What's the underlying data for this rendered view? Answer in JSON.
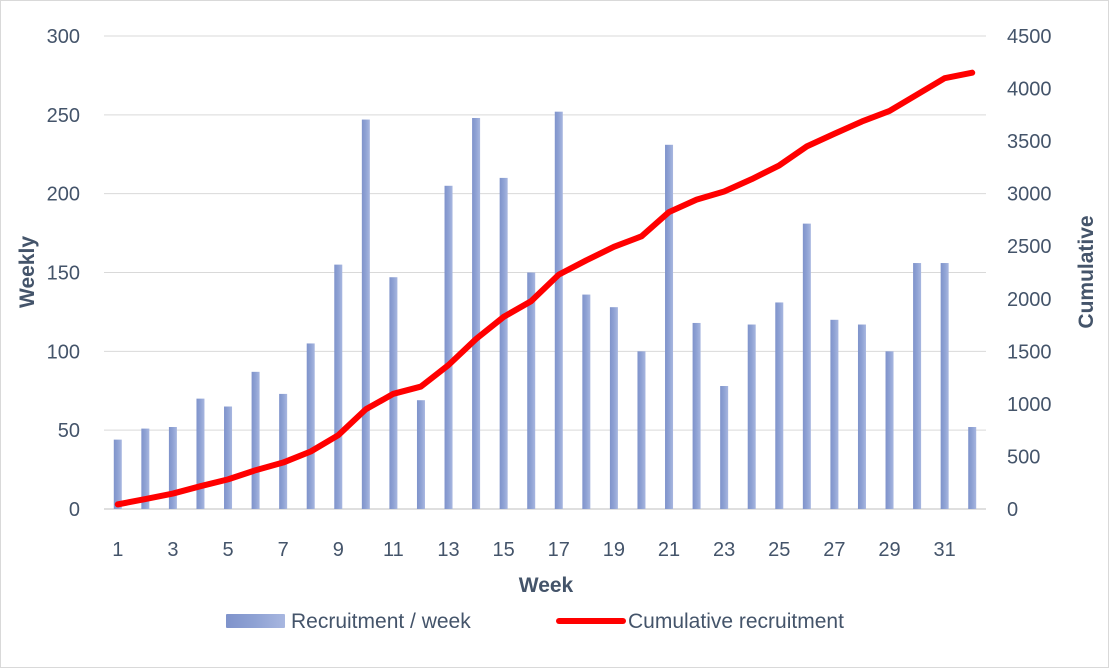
{
  "chart_data": {
    "type": "bar",
    "xlabel": "Week",
    "ylabel_left": "Weekly",
    "ylabel_right": "Cumulative",
    "ylim_left": [
      0,
      300
    ],
    "ylim_right": [
      0,
      4500
    ],
    "yticks_left": [
      "0",
      "50",
      "100",
      "150",
      "200",
      "250",
      "300"
    ],
    "yticks_right": [
      "0",
      "500",
      "1000",
      "1500",
      "2000",
      "2500",
      "3000",
      "3500",
      "4000",
      "4500"
    ],
    "xtick_labels": [
      "1",
      "3",
      "5",
      "7",
      "9",
      "11",
      "13",
      "15",
      "17",
      "19",
      "21",
      "23",
      "25",
      "27",
      "29",
      "31"
    ],
    "grid": true,
    "legend_position": "bottom",
    "categories": [
      1,
      2,
      3,
      4,
      5,
      6,
      7,
      8,
      9,
      10,
      11,
      12,
      13,
      14,
      15,
      16,
      17,
      18,
      19,
      20,
      21,
      22,
      23,
      24,
      25,
      26,
      27,
      28,
      29,
      30,
      31,
      32
    ],
    "series": [
      {
        "name": "Recruitment / week",
        "type": "bar",
        "axis": "left",
        "color": "#8fa2d4",
        "values": [
          44,
          51,
          52,
          70,
          65,
          87,
          73,
          105,
          155,
          247,
          147,
          69,
          205,
          248,
          210,
          150,
          252,
          136,
          128,
          100,
          231,
          118,
          78,
          117,
          131,
          181,
          120,
          117,
          100,
          156,
          156,
          52
        ]
      },
      {
        "name": "Cumulative recruitment",
        "type": "line",
        "axis": "right",
        "color": "#ff0000",
        "values": [
          44,
          95,
          147,
          217,
          282,
          369,
          442,
          547,
          702,
          949,
          1096,
          1165,
          1370,
          1618,
          1828,
          1978,
          2230,
          2366,
          2494,
          2594,
          2825,
          2943,
          3021,
          3138,
          3269,
          3450,
          3570,
          3687,
          3787,
          3943,
          4099,
          4151
        ]
      }
    ]
  }
}
